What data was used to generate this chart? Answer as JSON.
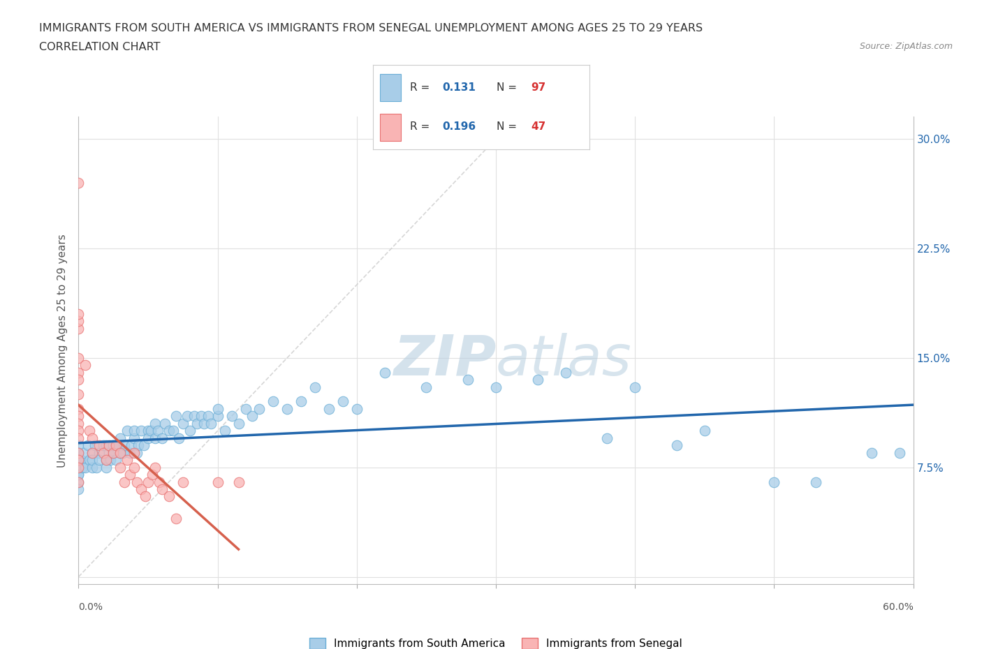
{
  "title_line1": "IMMIGRANTS FROM SOUTH AMERICA VS IMMIGRANTS FROM SENEGAL UNEMPLOYMENT AMONG AGES 25 TO 29 YEARS",
  "title_line2": "CORRELATION CHART",
  "source": "Source: ZipAtlas.com",
  "ylabel": "Unemployment Among Ages 25 to 29 years",
  "xlim": [
    0.0,
    0.6
  ],
  "ylim": [
    -0.005,
    0.315
  ],
  "xticks": [
    0.0,
    0.1,
    0.2,
    0.3,
    0.4,
    0.5,
    0.6
  ],
  "xticklabels": [
    "0.0%",
    "",
    "",
    "",
    "",
    "",
    "60.0%"
  ],
  "yticks": [
    0.0,
    0.075,
    0.15,
    0.225,
    0.3
  ],
  "yticklabels_right": [
    "",
    "7.5%",
    "15.0%",
    "22.5%",
    "30.0%"
  ],
  "south_america_color": "#a8cde8",
  "south_america_edge": "#6aaed6",
  "senegal_color": "#f9b4b4",
  "senegal_edge": "#e87070",
  "south_america_R": 0.131,
  "south_america_N": 97,
  "senegal_R": 0.196,
  "senegal_N": 47,
  "trend_sa_color": "#2166ac",
  "trend_sg_color": "#d6604d",
  "watermark_zip": "ZIP",
  "watermark_atlas": "atlas",
  "watermark_color": "#c8d8e8",
  "legend_label_sa": "Immigrants from South America",
  "legend_label_sg": "Immigrants from Senegal",
  "background_color": "#ffffff",
  "grid_color": "#e0e0e0",
  "south_america_x": [
    0.0,
    0.0,
    0.0,
    0.0,
    0.0,
    0.0,
    0.0,
    0.0,
    0.0,
    0.0,
    0.0,
    0.002,
    0.003,
    0.004,
    0.005,
    0.007,
    0.008,
    0.01,
    0.01,
    0.01,
    0.012,
    0.013,
    0.015,
    0.015,
    0.018,
    0.02,
    0.02,
    0.02,
    0.022,
    0.023,
    0.025,
    0.025,
    0.027,
    0.028,
    0.03,
    0.03,
    0.032,
    0.033,
    0.035,
    0.037,
    0.038,
    0.04,
    0.04,
    0.042,
    0.043,
    0.045,
    0.047,
    0.05,
    0.05,
    0.052,
    0.055,
    0.055,
    0.057,
    0.06,
    0.062,
    0.065,
    0.068,
    0.07,
    0.072,
    0.075,
    0.078,
    0.08,
    0.083,
    0.085,
    0.088,
    0.09,
    0.093,
    0.095,
    0.1,
    0.1,
    0.105,
    0.11,
    0.115,
    0.12,
    0.125,
    0.13,
    0.14,
    0.15,
    0.16,
    0.17,
    0.18,
    0.19,
    0.2,
    0.22,
    0.25,
    0.28,
    0.3,
    0.33,
    0.35,
    0.38,
    0.4,
    0.43,
    0.45,
    0.5,
    0.53,
    0.57,
    0.59
  ],
  "south_america_y": [
    0.08,
    0.085,
    0.075,
    0.09,
    0.07,
    0.065,
    0.08,
    0.075,
    0.085,
    0.07,
    0.06,
    0.08,
    0.075,
    0.085,
    0.075,
    0.09,
    0.08,
    0.075,
    0.085,
    0.08,
    0.09,
    0.075,
    0.085,
    0.08,
    0.09,
    0.08,
    0.09,
    0.075,
    0.085,
    0.08,
    0.085,
    0.09,
    0.08,
    0.09,
    0.085,
    0.095,
    0.085,
    0.09,
    0.1,
    0.085,
    0.09,
    0.095,
    0.1,
    0.085,
    0.09,
    0.1,
    0.09,
    0.1,
    0.095,
    0.1,
    0.095,
    0.105,
    0.1,
    0.095,
    0.105,
    0.1,
    0.1,
    0.11,
    0.095,
    0.105,
    0.11,
    0.1,
    0.11,
    0.105,
    0.11,
    0.105,
    0.11,
    0.105,
    0.11,
    0.115,
    0.1,
    0.11,
    0.105,
    0.115,
    0.11,
    0.115,
    0.12,
    0.115,
    0.12,
    0.13,
    0.115,
    0.12,
    0.115,
    0.14,
    0.13,
    0.135,
    0.13,
    0.135,
    0.14,
    0.095,
    0.13,
    0.09,
    0.1,
    0.065,
    0.065,
    0.085,
    0.085
  ],
  "senegal_x": [
    0.0,
    0.0,
    0.0,
    0.0,
    0.0,
    0.0,
    0.0,
    0.0,
    0.0,
    0.0,
    0.0,
    0.0,
    0.0,
    0.0,
    0.0,
    0.0,
    0.0,
    0.005,
    0.008,
    0.01,
    0.01,
    0.015,
    0.018,
    0.02,
    0.022,
    0.025,
    0.027,
    0.03,
    0.03,
    0.033,
    0.035,
    0.037,
    0.04,
    0.04,
    0.042,
    0.045,
    0.048,
    0.05,
    0.053,
    0.055,
    0.058,
    0.06,
    0.065,
    0.07,
    0.075,
    0.1,
    0.115
  ],
  "senegal_y": [
    0.27,
    0.17,
    0.175,
    0.18,
    0.15,
    0.14,
    0.135,
    0.125,
    0.115,
    0.11,
    0.105,
    0.1,
    0.095,
    0.085,
    0.08,
    0.075,
    0.065,
    0.145,
    0.1,
    0.095,
    0.085,
    0.09,
    0.085,
    0.08,
    0.09,
    0.085,
    0.09,
    0.085,
    0.075,
    0.065,
    0.08,
    0.07,
    0.085,
    0.075,
    0.065,
    0.06,
    0.055,
    0.065,
    0.07,
    0.075,
    0.065,
    0.06,
    0.055,
    0.04,
    0.065,
    0.065,
    0.065
  ]
}
